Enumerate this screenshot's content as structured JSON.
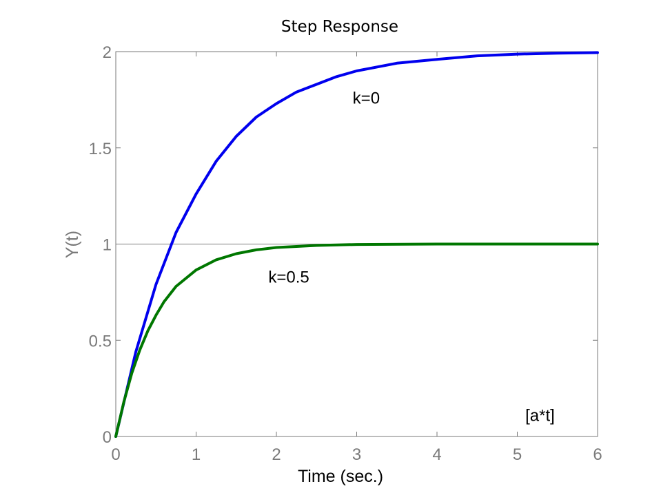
{
  "chart_data": {
    "type": "line",
    "title": "Step Response",
    "xlabel": "Time (sec.)",
    "ylabel": "Y(t)",
    "xlim": [
      0,
      6
    ],
    "ylim": [
      0,
      2
    ],
    "xticks": [
      0,
      1,
      2,
      3,
      4,
      5,
      6
    ],
    "xtick_labels": [
      "0",
      "1",
      "2",
      "3",
      "4",
      "5",
      "6"
    ],
    "yticks": [
      0,
      0.5,
      1,
      1.5,
      2
    ],
    "ytick_labels": [
      "0",
      "0.5",
      "1",
      "1.5",
      "2"
    ],
    "grid": false,
    "reference_line_y": 1,
    "series": [
      {
        "color": "#0000ee",
        "x": [
          0,
          0.25,
          0.5,
          0.75,
          1,
          1.25,
          1.5,
          1.75,
          2,
          2.25,
          2.5,
          2.75,
          3,
          3.5,
          4,
          4.5,
          5,
          5.5,
          6
        ],
        "y": [
          0,
          0.44,
          0.79,
          1.06,
          1.26,
          1.43,
          1.56,
          1.66,
          1.73,
          1.79,
          1.83,
          1.87,
          1.9,
          1.94,
          1.96,
          1.978,
          1.987,
          1.992,
          1.995
        ]
      },
      {
        "color": "#007700",
        "x": [
          0,
          0.1,
          0.2,
          0.3,
          0.4,
          0.5,
          0.6,
          0.75,
          1,
          1.25,
          1.5,
          1.75,
          2,
          2.5,
          3,
          4,
          5,
          6
        ],
        "y": [
          0,
          0.18,
          0.33,
          0.45,
          0.55,
          0.63,
          0.7,
          0.78,
          0.865,
          0.918,
          0.95,
          0.97,
          0.982,
          0.993,
          0.998,
          1,
          1,
          1
        ]
      }
    ],
    "annotations": [
      {
        "text": "k=0",
        "x": 2.95,
        "y": 1.73
      },
      {
        "text": "k=0.5",
        "x": 1.9,
        "y": 0.8
      },
      {
        "text": "[a*t]",
        "x": 5.1,
        "y": 0.08
      }
    ],
    "colors": {
      "axis": "#7a7a7a",
      "tick_text": "#7a7a7a",
      "xlabel_text": "#000000",
      "ylabel_text": "#7a7a7a"
    }
  }
}
